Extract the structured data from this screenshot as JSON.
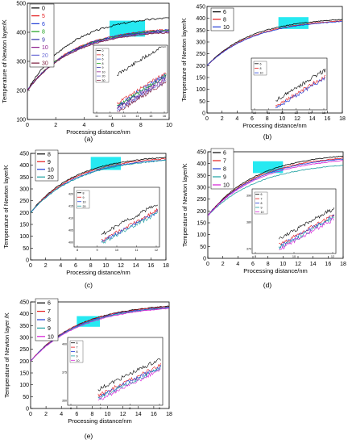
{
  "chart_data": [
    {
      "type": "line",
      "panel_label": "(a)",
      "ylabel": "Temperature of Newton layer/K",
      "xlabel": "Processing distance/nm",
      "xlim": [
        0,
        10
      ],
      "ylim": [
        100,
        500
      ],
      "xticks": [
        0,
        2,
        4,
        6,
        8,
        10
      ],
      "yticks": [
        100,
        200,
        300,
        400,
        500
      ],
      "x_range": [
        0,
        10
      ],
      "y_start": 200,
      "legend_position": "top-left",
      "highlight": {
        "x": [
          5.8,
          8.3
        ],
        "y": [
          385,
          440
        ]
      },
      "series": [
        {
          "name": "0",
          "color": "#000000",
          "final": 460,
          "k": 3.1,
          "noise": 6
        },
        {
          "name": "5",
          "color": "#e41a1c",
          "final": 420,
          "k": 3.2,
          "noise": 4
        },
        {
          "name": "6",
          "color": "#1f3bd6",
          "final": 418,
          "k": 3.2,
          "noise": 4
        },
        {
          "name": "8",
          "color": "#1aa01a",
          "final": 416,
          "k": 3.2,
          "noise": 4
        },
        {
          "name": "9",
          "color": "#2f2fa8",
          "final": 414,
          "k": 3.2,
          "noise": 4
        },
        {
          "name": "10",
          "color": "#8b1a8b",
          "final": 412,
          "k": 3.2,
          "noise": 4
        },
        {
          "name": "20",
          "color": "#6b6bd6",
          "final": 410,
          "k": 3.2,
          "noise": 4
        },
        {
          "name": "30",
          "color": "#7a1a3a",
          "final": 408,
          "k": 3.2,
          "noise": 4
        }
      ],
      "inset": {
        "xticks": [
          "11",
          "12",
          "13",
          "14",
          "15",
          "16"
        ],
        "legend": [
          "0",
          "5",
          "6",
          "8",
          "9",
          "10",
          "20",
          "30"
        ]
      }
    },
    {
      "type": "line",
      "panel_label": "(b)",
      "ylabel": "Temperature of Newton layer/K",
      "xlabel": "Processing distance/nm",
      "xlim": [
        0,
        18
      ],
      "ylim": [
        0,
        450
      ],
      "xticks": [
        0,
        2,
        4,
        6,
        8,
        10,
        12,
        14,
        16,
        18
      ],
      "yticks": [
        0,
        50,
        100,
        150,
        200,
        250,
        300,
        350,
        400,
        450
      ],
      "x_range": [
        0,
        18
      ],
      "y_start": 200,
      "legend_position": "top-left",
      "highlight": {
        "x": [
          9.5,
          13.5
        ],
        "y": [
          355,
          405
        ]
      },
      "series": [
        {
          "name": "6",
          "color": "#000000",
          "final": 405,
          "k": 6.0,
          "noise": 3
        },
        {
          "name": "8",
          "color": "#e41a1c",
          "final": 400,
          "k": 6.2,
          "noise": 3
        },
        {
          "name": "10",
          "color": "#1f3bd6",
          "final": 398,
          "k": 6.3,
          "noise": 3
        }
      ],
      "inset": {
        "xticks": [
          "10",
          "11",
          "12",
          "13",
          "14",
          "15"
        ],
        "legend": [
          "6",
          "8",
          "10"
        ]
      }
    },
    {
      "type": "line",
      "panel_label": "(c)",
      "ylabel": "Temperature of Newton layer/K",
      "xlabel": "Processing distance/nm",
      "xlim": [
        0,
        18
      ],
      "ylim": [
        0,
        450
      ],
      "xticks": [
        0,
        2,
        4,
        6,
        8,
        10,
        12,
        14,
        16,
        18
      ],
      "yticks": [
        0,
        50,
        100,
        150,
        200,
        250,
        300,
        350,
        400,
        450
      ],
      "x_range": [
        0,
        18
      ],
      "y_start": 200,
      "legend_position": "top-left",
      "highlight": {
        "x": [
          8,
          12
        ],
        "y": [
          380,
          435
        ]
      },
      "series": [
        {
          "name": "8",
          "color": "#000000",
          "final": 445,
          "k": 6.0,
          "noise": 4
        },
        {
          "name": "9",
          "color": "#e41a1c",
          "final": 440,
          "k": 6.1,
          "noise": 4
        },
        {
          "name": "10",
          "color": "#1f3bd6",
          "final": 436,
          "k": 6.3,
          "noise": 4
        },
        {
          "name": "20",
          "color": "#1aa0a0",
          "final": 434,
          "k": 6.4,
          "noise": 4
        }
      ],
      "inset": {
        "xticks": [
          "8",
          "9",
          "10",
          "11",
          "12"
        ],
        "yticks": [
          "400",
          "405",
          "410",
          "415",
          "420"
        ],
        "legend": [
          "8",
          "9",
          "10",
          "20"
        ]
      }
    },
    {
      "type": "line",
      "panel_label": "(d)",
      "ylabel": "Temperature of Newton layer/K",
      "xlabel": "Processing distance/nm",
      "xlim": [
        0,
        18
      ],
      "ylim": [
        0,
        450
      ],
      "xticks": [
        0,
        2,
        4,
        6,
        8,
        10,
        12,
        14,
        16,
        18
      ],
      "yticks": [
        0,
        50,
        100,
        150,
        200,
        250,
        300,
        350,
        400,
        450
      ],
      "x_range": [
        0,
        18
      ],
      "y_start": 180,
      "legend_position": "top-left",
      "highlight": {
        "x": [
          6,
          10
        ],
        "y": [
          360,
          410
        ]
      },
      "series": [
        {
          "name": "6",
          "color": "#000000",
          "final": 448,
          "k": 6.5,
          "noise": 3
        },
        {
          "name": "7",
          "color": "#e41a1c",
          "final": 440,
          "k": 6.6,
          "noise": 3
        },
        {
          "name": "8",
          "color": "#1f3bd6",
          "final": 436,
          "k": 6.7,
          "noise": 3
        },
        {
          "name": "9",
          "color": "#1aa0a0",
          "final": 410,
          "k": 6.9,
          "noise": 3
        },
        {
          "name": "10",
          "color": "#d61ad6",
          "final": 430,
          "k": 6.8,
          "noise": 3
        }
      ],
      "inset": {
        "xticks": [
          "8",
          "10",
          "12"
        ],
        "yticks": [
          "370",
          "380",
          "390"
        ],
        "legend": [
          "6",
          "7",
          "8",
          "9",
          "10"
        ]
      }
    },
    {
      "type": "line",
      "panel_label": "(e)",
      "ylabel": "Temperature of Newton layer /K",
      "xlabel": "Processing distance/nm",
      "xlim": [
        0,
        18
      ],
      "ylim": [
        0,
        450
      ],
      "xticks": [
        0,
        2,
        4,
        6,
        8,
        10,
        12,
        14,
        16,
        18
      ],
      "yticks": [
        0,
        50,
        100,
        150,
        200,
        250,
        300,
        350,
        400,
        450
      ],
      "x_range": [
        0,
        18
      ],
      "y_start": 200,
      "legend_position": "top-left",
      "highlight": {
        "x": [
          6,
          9
        ],
        "y": [
          345,
          390
        ]
      },
      "series": [
        {
          "name": "6",
          "color": "#000000",
          "final": 446,
          "k": 6.3,
          "noise": 3
        },
        {
          "name": "7",
          "color": "#e41a1c",
          "final": 444,
          "k": 6.3,
          "noise": 3
        },
        {
          "name": "8",
          "color": "#1f3bd6",
          "final": 442,
          "k": 6.4,
          "noise": 3
        },
        {
          "name": "9",
          "color": "#1aa0a0",
          "final": 440,
          "k": 6.5,
          "noise": 3
        },
        {
          "name": "10",
          "color": "#d61ad6",
          "final": 438,
          "k": 6.6,
          "noise": 3
        }
      ],
      "inset": {
        "xticks": [
          "6",
          "7",
          "8",
          "9"
        ],
        "yticks": [
          "350",
          "375",
          "400"
        ],
        "legend": [
          "6",
          "7",
          "8",
          "9",
          "10"
        ]
      }
    }
  ]
}
